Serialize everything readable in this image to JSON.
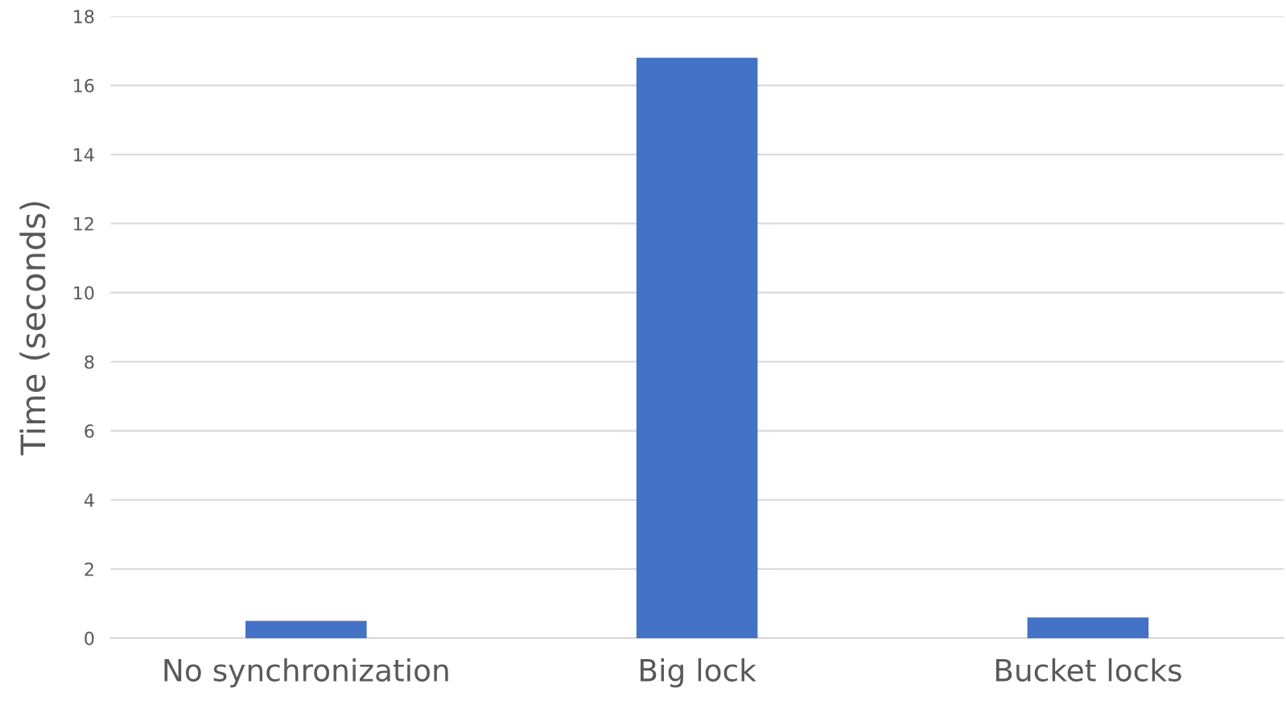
{
  "chart_data": {
    "type": "bar",
    "ylabel": "Time (seconds)",
    "categories": [
      "No synchronization",
      "Big lock",
      "Bucket locks"
    ],
    "values": [
      0.5,
      16.8,
      0.6
    ],
    "color": "#4472c4",
    "ylim": [
      0,
      18
    ],
    "yticks": [
      0,
      2,
      4,
      6,
      8,
      10,
      12,
      14,
      16,
      18
    ],
    "grid": "y",
    "legend": false
  }
}
